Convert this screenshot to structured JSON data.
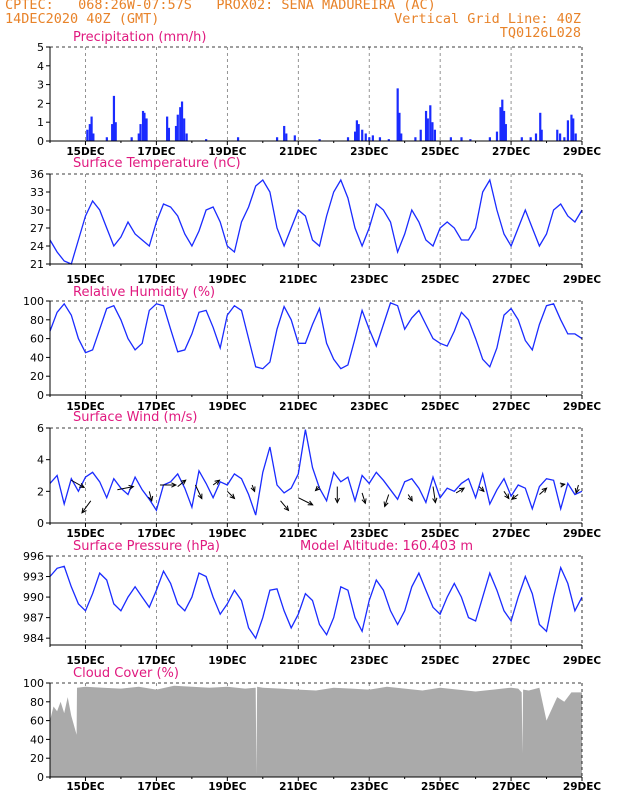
{
  "header": {
    "line1_left": "CPTEC:   068:26W-07:57S   PROX02: SENA MADUREIRA (AC)",
    "line2_left": "14DEC2020 40Z (GMT)",
    "line2_right": "Vertical Grid Line: 40Z",
    "line3_right": "TQ0126L028"
  },
  "colors": {
    "header": "#e8832a",
    "title": "#e0197f",
    "series": "#1a2bff",
    "cloud": "#aaaaaa",
    "arrow": "#000000"
  },
  "x_ticks": [
    "15DEC",
    "17DEC",
    "19DEC",
    "21DEC",
    "23DEC",
    "25DEC",
    "27DEC",
    "29DEC"
  ],
  "x_grid_days": [
    15,
    17,
    19,
    21,
    23,
    25,
    27,
    29
  ],
  "chart_data": [
    {
      "id": "precip",
      "type": "bar",
      "title": "Precipitation (mm/h)",
      "x_start": 14.0,
      "x_end": 29.0,
      "ylim": [
        0,
        5
      ],
      "yticks": [
        0,
        1,
        2,
        3,
        4,
        5
      ],
      "bars": [
        [
          15.05,
          0.6
        ],
        [
          15.12,
          0.9
        ],
        [
          15.17,
          1.3
        ],
        [
          15.22,
          0.4
        ],
        [
          15.6,
          0.2
        ],
        [
          15.75,
          0.9
        ],
        [
          15.8,
          2.4
        ],
        [
          15.85,
          1.0
        ],
        [
          16.3,
          0.2
        ],
        [
          16.5,
          0.4
        ],
        [
          16.55,
          0.9
        ],
        [
          16.62,
          1.6
        ],
        [
          16.66,
          1.5
        ],
        [
          16.72,
          1.2
        ],
        [
          17.3,
          1.3
        ],
        [
          17.35,
          0.7
        ],
        [
          17.55,
          0.8
        ],
        [
          17.6,
          1.4
        ],
        [
          17.67,
          1.8
        ],
        [
          17.72,
          2.1
        ],
        [
          17.78,
          1.2
        ],
        [
          17.85,
          0.4
        ],
        [
          18.4,
          0.1
        ],
        [
          19.3,
          0.2
        ],
        [
          20.4,
          0.2
        ],
        [
          20.6,
          0.8
        ],
        [
          20.66,
          0.4
        ],
        [
          20.9,
          0.3
        ],
        [
          21.6,
          0.1
        ],
        [
          22.4,
          0.2
        ],
        [
          22.6,
          0.5
        ],
        [
          22.65,
          1.1
        ],
        [
          22.7,
          0.9
        ],
        [
          22.8,
          0.6
        ],
        [
          22.9,
          0.4
        ],
        [
          23.0,
          0.2
        ],
        [
          23.1,
          0.3
        ],
        [
          23.3,
          0.2
        ],
        [
          23.55,
          0.1
        ],
        [
          23.8,
          2.8
        ],
        [
          23.85,
          1.5
        ],
        [
          23.9,
          0.4
        ],
        [
          24.3,
          0.2
        ],
        [
          24.45,
          0.6
        ],
        [
          24.6,
          1.6
        ],
        [
          24.65,
          1.2
        ],
        [
          24.72,
          1.9
        ],
        [
          24.78,
          1.0
        ],
        [
          24.85,
          0.6
        ],
        [
          25.3,
          0.2
        ],
        [
          25.6,
          0.2
        ],
        [
          25.85,
          0.1
        ],
        [
          26.4,
          0.2
        ],
        [
          26.6,
          0.5
        ],
        [
          26.7,
          1.8
        ],
        [
          26.75,
          2.2
        ],
        [
          26.8,
          1.6
        ],
        [
          26.85,
          0.9
        ],
        [
          27.3,
          0.2
        ],
        [
          27.55,
          0.2
        ],
        [
          27.7,
          0.4
        ],
        [
          27.82,
          1.5
        ],
        [
          27.86,
          0.6
        ],
        [
          28.3,
          0.6
        ],
        [
          28.38,
          0.4
        ],
        [
          28.5,
          0.2
        ],
        [
          28.6,
          1.1
        ],
        [
          28.7,
          1.4
        ],
        [
          28.75,
          1.2
        ],
        [
          28.82,
          0.4
        ]
      ]
    },
    {
      "id": "temp",
      "type": "line",
      "title": "Surface Temperature (nC)",
      "x_start": 14.0,
      "x_end": 29.0,
      "ylim": [
        21,
        36
      ],
      "yticks": [
        21,
        24,
        27,
        30,
        33,
        36
      ],
      "x": [
        14.0,
        14.2,
        14.4,
        14.6,
        14.8,
        15.0,
        15.2,
        15.4,
        15.6,
        15.8,
        16.0,
        16.2,
        16.4,
        16.6,
        16.8,
        17.0,
        17.2,
        17.4,
        17.6,
        17.8,
        18.0,
        18.2,
        18.4,
        18.6,
        18.8,
        19.0,
        19.2,
        19.4,
        19.6,
        19.8,
        20.0,
        20.2,
        20.4,
        20.6,
        20.8,
        21.0,
        21.2,
        21.4,
        21.6,
        21.8,
        22.0,
        22.2,
        22.4,
        22.6,
        22.8,
        23.0,
        23.2,
        23.4,
        23.6,
        23.8,
        24.0,
        24.2,
        24.4,
        24.6,
        24.8,
        25.0,
        25.2,
        25.4,
        25.6,
        25.8,
        26.0,
        26.2,
        26.4,
        26.6,
        26.8,
        27.0,
        27.2,
        27.4,
        27.6,
        27.8,
        28.0,
        28.2,
        28.4,
        28.6,
        28.8,
        29.0
      ],
      "values": [
        25,
        23,
        21.5,
        21,
        25,
        29,
        31.5,
        30,
        27,
        24,
        25.5,
        28,
        26,
        25,
        24,
        28,
        31,
        30.5,
        29,
        26,
        24,
        26.5,
        30,
        30.5,
        28,
        24,
        23,
        28,
        30.5,
        34,
        35,
        33,
        27,
        24,
        27,
        30,
        29,
        25,
        24,
        29,
        33,
        35,
        32,
        27,
        24,
        27,
        31,
        30,
        28,
        23,
        26,
        30,
        28,
        25,
        24,
        27,
        28,
        27,
        25,
        25,
        27,
        33,
        35,
        30,
        26,
        24,
        27,
        30,
        27,
        24,
        26,
        30,
        31,
        29,
        28,
        30
      ]
    },
    {
      "id": "rh",
      "type": "line",
      "title": "Relative Humidity (%)",
      "x_start": 14.0,
      "x_end": 29.0,
      "ylim": [
        0,
        100
      ],
      "yticks": [
        0,
        20,
        40,
        60,
        80,
        100
      ],
      "x": [
        14.0,
        14.2,
        14.4,
        14.6,
        14.8,
        15.0,
        15.2,
        15.4,
        15.6,
        15.8,
        16.0,
        16.2,
        16.4,
        16.6,
        16.8,
        17.0,
        17.2,
        17.4,
        17.6,
        17.8,
        18.0,
        18.2,
        18.4,
        18.6,
        18.8,
        19.0,
        19.2,
        19.4,
        19.6,
        19.8,
        20.0,
        20.2,
        20.4,
        20.6,
        20.8,
        21.0,
        21.2,
        21.4,
        21.6,
        21.8,
        22.0,
        22.2,
        22.4,
        22.6,
        22.8,
        23.0,
        23.2,
        23.4,
        23.6,
        23.8,
        24.0,
        24.2,
        24.4,
        24.6,
        24.8,
        25.0,
        25.2,
        25.4,
        25.6,
        25.8,
        26.0,
        26.2,
        26.4,
        26.6,
        26.8,
        27.0,
        27.2,
        27.4,
        27.6,
        27.8,
        28.0,
        28.2,
        28.4,
        28.6,
        28.8,
        29.0
      ],
      "values": [
        68,
        88,
        97,
        85,
        60,
        45,
        48,
        70,
        92,
        95,
        80,
        60,
        48,
        55,
        90,
        97,
        95,
        70,
        46,
        48,
        65,
        88,
        90,
        72,
        50,
        85,
        95,
        90,
        60,
        30,
        28,
        35,
        70,
        94,
        80,
        55,
        55,
        75,
        92,
        55,
        38,
        28,
        32,
        60,
        90,
        70,
        52,
        75,
        98,
        95,
        70,
        82,
        90,
        75,
        60,
        55,
        52,
        68,
        88,
        80,
        60,
        38,
        30,
        50,
        85,
        92,
        80,
        58,
        48,
        75,
        95,
        97,
        80,
        65,
        65,
        60
      ]
    },
    {
      "id": "wind",
      "type": "line+arrows",
      "title": "Surface Wind (m/s)",
      "x_start": 14.0,
      "x_end": 29.0,
      "ylim": [
        0,
        6
      ],
      "yticks": [
        0,
        2,
        4,
        6
      ],
      "x": [
        14.0,
        14.2,
        14.4,
        14.6,
        14.8,
        15.0,
        15.2,
        15.4,
        15.6,
        15.8,
        16.0,
        16.2,
        16.4,
        16.6,
        16.8,
        17.0,
        17.2,
        17.4,
        17.6,
        17.8,
        18.0,
        18.2,
        18.4,
        18.6,
        18.8,
        19.0,
        19.2,
        19.4,
        19.6,
        19.8,
        20.0,
        20.2,
        20.4,
        20.6,
        20.8,
        21.0,
        21.2,
        21.4,
        21.6,
        21.8,
        22.0,
        22.2,
        22.4,
        22.6,
        22.8,
        23.0,
        23.2,
        23.4,
        23.6,
        23.8,
        24.0,
        24.2,
        24.4,
        24.6,
        24.8,
        25.0,
        25.2,
        25.4,
        25.6,
        25.8,
        26.0,
        26.2,
        26.4,
        26.6,
        26.8,
        27.0,
        27.2,
        27.4,
        27.6,
        27.8,
        28.0,
        28.2,
        28.4,
        28.6,
        28.8,
        29.0
      ],
      "values": [
        2.5,
        3.0,
        1.2,
        2.8,
        2.0,
        2.9,
        3.2,
        2.6,
        1.6,
        2.8,
        2.2,
        1.8,
        2.9,
        2.1,
        1.5,
        0.8,
        2.4,
        2.6,
        3.1,
        2.2,
        1.0,
        3.3,
        2.5,
        1.6,
        2.6,
        2.4,
        3.1,
        2.8,
        1.8,
        0.5,
        3.2,
        4.8,
        2.4,
        1.9,
        2.2,
        3.1,
        5.9,
        3.5,
        2.2,
        1.4,
        3.2,
        2.6,
        2.9,
        1.4,
        3.0,
        2.5,
        3.2,
        2.7,
        2.1,
        1.5,
        2.6,
        2.8,
        2.2,
        1.3,
        2.9,
        1.6,
        2.2,
        2.0,
        2.5,
        2.8,
        1.6,
        3.1,
        1.2,
        2.1,
        2.8,
        1.7,
        2.4,
        2.2,
        0.9,
        2.3,
        2.8,
        2.7,
        0.9,
        2.5,
        1.8,
        2.0
      ],
      "arrows": [
        [
          14.6,
          2.7,
          1.6,
          -0.9
        ],
        [
          15.15,
          1.4,
          -1.1,
          -1.5
        ],
        [
          15.9,
          2.1,
          2.0,
          0.4
        ],
        [
          16.8,
          2.0,
          0.3,
          -1.2
        ],
        [
          17.1,
          2.4,
          2.0,
          0.0
        ],
        [
          17.6,
          2.3,
          1.0,
          0.8
        ],
        [
          18.1,
          2.4,
          0.8,
          -1.7
        ],
        [
          18.6,
          2.4,
          0.8,
          0.6
        ],
        [
          19.0,
          2.0,
          0.9,
          -0.9
        ],
        [
          19.7,
          2.4,
          0.3,
          -0.8
        ],
        [
          20.5,
          1.4,
          1.0,
          -1.2
        ],
        [
          21.0,
          1.6,
          1.8,
          -0.9
        ],
        [
          21.6,
          2.3,
          -0.5,
          -0.5
        ],
        [
          22.1,
          2.3,
          0.0,
          -2.0
        ],
        [
          22.8,
          1.9,
          0.4,
          -1.3
        ],
        [
          23.55,
          1.8,
          -0.5,
          -1.5
        ],
        [
          24.1,
          1.8,
          0.5,
          -0.8
        ],
        [
          24.8,
          2.3,
          0.3,
          -2.0
        ],
        [
          25.45,
          1.9,
          1.0,
          0.6
        ],
        [
          26.1,
          2.3,
          0.6,
          -0.6
        ],
        [
          26.8,
          2.0,
          0.6,
          -0.9
        ],
        [
          27.2,
          1.8,
          -0.8,
          -0.6
        ],
        [
          27.8,
          1.8,
          0.9,
          0.8
        ],
        [
          28.4,
          2.4,
          0.5,
          0.1
        ],
        [
          28.9,
          2.4,
          -0.3,
          -1.0
        ]
      ]
    },
    {
      "id": "pres",
      "type": "line",
      "title": "Surface Pressure (hPa)",
      "annotation": "Model Altitude: 160.403 m",
      "x_start": 14.0,
      "x_end": 29.0,
      "ylim": [
        983,
        996
      ],
      "yticks": [
        984,
        987,
        990,
        993,
        996
      ],
      "x": [
        14.0,
        14.2,
        14.4,
        14.6,
        14.8,
        15.0,
        15.2,
        15.4,
        15.6,
        15.8,
        16.0,
        16.2,
        16.4,
        16.6,
        16.8,
        17.0,
        17.2,
        17.4,
        17.6,
        17.8,
        18.0,
        18.2,
        18.4,
        18.6,
        18.8,
        19.0,
        19.2,
        19.4,
        19.6,
        19.8,
        20.0,
        20.2,
        20.4,
        20.6,
        20.8,
        21.0,
        21.2,
        21.4,
        21.6,
        21.8,
        22.0,
        22.2,
        22.4,
        22.6,
        22.8,
        23.0,
        23.2,
        23.4,
        23.6,
        23.8,
        24.0,
        24.2,
        24.4,
        24.6,
        24.8,
        25.0,
        25.2,
        25.4,
        25.6,
        25.8,
        26.0,
        26.2,
        26.4,
        26.6,
        26.8,
        27.0,
        27.2,
        27.4,
        27.6,
        27.8,
        28.0,
        28.2,
        28.4,
        28.6,
        28.8,
        29.0
      ],
      "values": [
        993,
        994.2,
        994.5,
        991.5,
        989,
        988,
        990.5,
        993.5,
        992.5,
        989,
        988,
        990,
        991.5,
        990,
        988.5,
        991,
        993.8,
        992,
        989,
        988,
        990,
        993.5,
        993,
        990,
        987.5,
        989,
        991,
        989.5,
        985.5,
        984,
        987,
        991,
        991.2,
        988,
        985.5,
        987.5,
        990.5,
        989.5,
        986,
        984.5,
        987,
        991.5,
        991,
        987,
        985,
        989.5,
        992.5,
        991,
        988,
        986,
        988,
        991.5,
        993.5,
        991,
        988.5,
        987.5,
        990,
        992,
        990,
        987,
        986.5,
        990,
        993.5,
        991,
        988,
        986.5,
        990,
        993,
        990.5,
        986,
        985,
        990,
        994.3,
        992,
        988,
        990
      ]
    },
    {
      "id": "cloud",
      "type": "area",
      "title": "Cloud Cover (%)",
      "x_start": 14.0,
      "x_end": 29.0,
      "ylim": [
        0,
        100
      ],
      "yticks": [
        0,
        20,
        40,
        60,
        80,
        100
      ],
      "x": [
        14.0,
        14.1,
        14.2,
        14.3,
        14.4,
        14.5,
        14.6,
        14.75,
        14.76,
        15.0,
        15.5,
        16.0,
        16.5,
        17.0,
        17.5,
        18.0,
        18.5,
        19.0,
        19.5,
        19.8,
        19.82,
        19.84,
        20.0,
        20.5,
        21.0,
        21.5,
        22.0,
        22.5,
        23.0,
        23.5,
        24.0,
        24.5,
        25.0,
        25.5,
        26.0,
        26.5,
        27.0,
        27.2,
        27.3,
        27.32,
        27.34,
        27.5,
        27.8,
        28.0,
        28.3,
        28.5,
        28.7,
        29.0
      ],
      "values": [
        60,
        75,
        70,
        80,
        68,
        85,
        65,
        45,
        95,
        96,
        95,
        94,
        96,
        93,
        97,
        96,
        95,
        96,
        94,
        95,
        2,
        96,
        95,
        94,
        93,
        92,
        95,
        94,
        93,
        96,
        94,
        92,
        95,
        93,
        91,
        93,
        95,
        94,
        90,
        25,
        93,
        92,
        95,
        60,
        85,
        80,
        90,
        90
      ]
    }
  ]
}
